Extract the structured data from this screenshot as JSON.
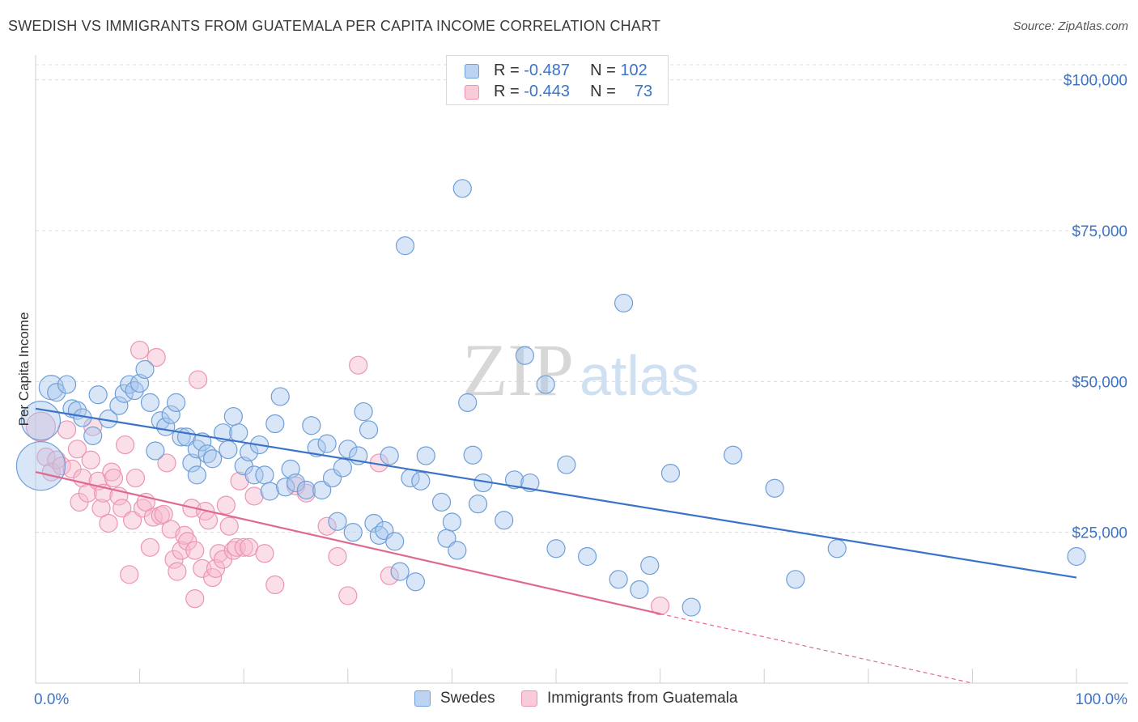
{
  "title": "SWEDISH VS IMMIGRANTS FROM GUATEMALA PER CAPITA INCOME CORRELATION CHART",
  "source": "Source: ZipAtlas.com",
  "watermark": {
    "zip": "ZIP",
    "atlas": "atlas"
  },
  "colors": {
    "blue": "#3a73c9",
    "blue_fill": "#a9c8ee",
    "blue_stroke": "#6f9fd8",
    "pink": "#e0698f",
    "pink_fill": "#f6b9cc",
    "pink_stroke": "#ec95b2",
    "grid": "#dcdcdc",
    "axis_text": "#3a73c9"
  },
  "legend": {
    "rows": [
      {
        "r_label": "R =",
        "r_value": "-0.487",
        "n_label": "N =",
        "n_value": "102"
      },
      {
        "r_label": "R =",
        "r_value": "-0.443",
        "n_label": "N =",
        "n_value": "73"
      }
    ]
  },
  "bottom_legend": {
    "swedes": "Swedes",
    "guatemala": "Immigrants from Guatemala"
  },
  "chart_data": {
    "type": "scatter",
    "title": "SWEDISH VS IMMIGRANTS FROM GUATEMALA PER CAPITA INCOME CORRELATION CHART",
    "ylabel": "Per Capita Income",
    "xlabel": "",
    "xlim": [
      0,
      100
    ],
    "ylim": [
      0,
      102500
    ],
    "x_tick_labels": [
      "0.0%",
      "100.0%"
    ],
    "y_ticks": [
      25000,
      50000,
      75000,
      100000
    ],
    "y_tick_labels": [
      "$25,000",
      "$50,000",
      "$75,000",
      "$100,000"
    ],
    "grid": true,
    "legend_position": "top-center",
    "series": [
      {
        "name": "Swedes",
        "color": "#3a73c9",
        "trend": {
          "x": [
            0,
            100
          ],
          "y": [
            45500,
            17500
          ]
        },
        "points": [
          [
            0.5,
            36000,
            30
          ],
          [
            0.5,
            43500,
            24
          ],
          [
            1.5,
            49000,
            15
          ],
          [
            2,
            48200,
            11
          ],
          [
            3,
            49500,
            11
          ],
          [
            3.5,
            45500,
            11
          ],
          [
            4,
            45200,
            11
          ],
          [
            4.5,
            44000,
            11
          ],
          [
            5.5,
            41000,
            11
          ],
          [
            6,
            47800,
            11
          ],
          [
            7,
            43800,
            11
          ],
          [
            8,
            46000,
            11
          ],
          [
            8.5,
            48000,
            11
          ],
          [
            9,
            49500,
            11
          ],
          [
            9.5,
            48500,
            11
          ],
          [
            10,
            49700,
            11
          ],
          [
            10.5,
            52000,
            11
          ],
          [
            11,
            46500,
            11
          ],
          [
            11.5,
            38500,
            11
          ],
          [
            12,
            43500,
            11
          ],
          [
            12.5,
            42500,
            11
          ],
          [
            13,
            44500,
            11
          ],
          [
            13.5,
            46500,
            11
          ],
          [
            14,
            40800,
            11
          ],
          [
            14.5,
            40800,
            11
          ],
          [
            15,
            36500,
            11
          ],
          [
            15.5,
            34500,
            11
          ],
          [
            15.5,
            38800,
            11
          ],
          [
            16,
            40000,
            11
          ],
          [
            16.5,
            38000,
            11
          ],
          [
            17,
            37200,
            11
          ],
          [
            18,
            41500,
            11
          ],
          [
            18.5,
            38700,
            11
          ],
          [
            19,
            44200,
            11
          ],
          [
            19.5,
            41500,
            11
          ],
          [
            20,
            36000,
            11
          ],
          [
            20.5,
            38300,
            11
          ],
          [
            21,
            34500,
            11
          ],
          [
            21.5,
            39500,
            11
          ],
          [
            22,
            34500,
            11
          ],
          [
            22.5,
            31800,
            11
          ],
          [
            23,
            43000,
            11
          ],
          [
            23.5,
            47500,
            11
          ],
          [
            24,
            32500,
            11
          ],
          [
            24.5,
            35500,
            11
          ],
          [
            25,
            33200,
            11
          ],
          [
            26,
            32000,
            11
          ],
          [
            26.5,
            42700,
            11
          ],
          [
            27,
            39000,
            11
          ],
          [
            27.5,
            32000,
            11
          ],
          [
            28,
            39700,
            11
          ],
          [
            28.5,
            34000,
            11
          ],
          [
            29,
            26800,
            11
          ],
          [
            29.5,
            35700,
            11
          ],
          [
            30,
            38800,
            11
          ],
          [
            30.5,
            25000,
            11
          ],
          [
            31,
            37700,
            11
          ],
          [
            31.5,
            45000,
            11
          ],
          [
            32,
            42000,
            11
          ],
          [
            32.5,
            26500,
            11
          ],
          [
            33,
            24500,
            11
          ],
          [
            33.5,
            25300,
            11
          ],
          [
            34,
            37700,
            11
          ],
          [
            34.5,
            23500,
            11
          ],
          [
            35,
            18500,
            11
          ],
          [
            35.5,
            72500,
            11
          ],
          [
            36,
            34000,
            11
          ],
          [
            36.5,
            16800,
            11
          ],
          [
            37,
            33500,
            11
          ],
          [
            37.5,
            37700,
            11
          ],
          [
            39,
            30000,
            11
          ],
          [
            39.5,
            24000,
            11
          ],
          [
            40,
            26700,
            11
          ],
          [
            40.5,
            22000,
            11
          ],
          [
            41,
            82000,
            11
          ],
          [
            41.5,
            46500,
            11
          ],
          [
            42,
            37800,
            11
          ],
          [
            42.5,
            29700,
            11
          ],
          [
            43,
            33200,
            11
          ],
          [
            45,
            27000,
            11
          ],
          [
            46,
            33700,
            11
          ],
          [
            47,
            54300,
            11
          ],
          [
            47.5,
            33200,
            11
          ],
          [
            49,
            49500,
            11
          ],
          [
            50,
            22300,
            11
          ],
          [
            51,
            36200,
            11
          ],
          [
            53,
            21000,
            11
          ],
          [
            56,
            17200,
            11
          ],
          [
            56.5,
            63000,
            11
          ],
          [
            58,
            15500,
            11
          ],
          [
            59,
            19500,
            11
          ],
          [
            61,
            34800,
            11
          ],
          [
            63,
            12600,
            11
          ],
          [
            67,
            37800,
            11
          ],
          [
            71,
            32300,
            11
          ],
          [
            73,
            17200,
            11
          ],
          [
            77,
            22300,
            11
          ],
          [
            100,
            21000,
            11
          ]
        ]
      },
      {
        "name": "Immigrants from Guatemala",
        "color": "#e0698f",
        "trend": {
          "x": [
            0,
            60
          ],
          "y": [
            35000,
            11500
          ]
        },
        "trend_dashed": {
          "x": [
            60,
            90
          ],
          "y": [
            11500,
            0
          ]
        },
        "points": [
          [
            0.5,
            42500,
            18
          ],
          [
            1,
            37500,
            11
          ],
          [
            1.5,
            35000,
            11
          ],
          [
            2,
            37000,
            11
          ],
          [
            2.5,
            36000,
            11
          ],
          [
            3,
            42000,
            11
          ],
          [
            3.5,
            35500,
            11
          ],
          [
            4,
            38800,
            11
          ],
          [
            4.2,
            30000,
            11
          ],
          [
            4.5,
            34000,
            11
          ],
          [
            5,
            31500,
            11
          ],
          [
            5.3,
            37000,
            11
          ],
          [
            5.5,
            42500,
            11
          ],
          [
            6,
            33500,
            11
          ],
          [
            6.3,
            29000,
            11
          ],
          [
            6.5,
            31500,
            11
          ],
          [
            7,
            26500,
            11
          ],
          [
            7.3,
            35000,
            11
          ],
          [
            7.5,
            34000,
            11
          ],
          [
            8,
            31000,
            11
          ],
          [
            8.3,
            29000,
            11
          ],
          [
            8.6,
            39500,
            11
          ],
          [
            9,
            18000,
            11
          ],
          [
            9.3,
            27000,
            11
          ],
          [
            9.6,
            34000,
            11
          ],
          [
            10,
            55200,
            11
          ],
          [
            10.3,
            29000,
            11
          ],
          [
            10.6,
            30000,
            11
          ],
          [
            11,
            22500,
            11
          ],
          [
            11.3,
            27500,
            11
          ],
          [
            11.6,
            54000,
            11
          ],
          [
            12,
            27800,
            11
          ],
          [
            12.3,
            28000,
            11
          ],
          [
            12.6,
            36500,
            11
          ],
          [
            13,
            25500,
            11
          ],
          [
            13.3,
            20500,
            11
          ],
          [
            13.6,
            18500,
            11
          ],
          [
            14,
            22000,
            11
          ],
          [
            14.3,
            24500,
            11
          ],
          [
            14.6,
            23500,
            11
          ],
          [
            15,
            29000,
            11
          ],
          [
            15.3,
            22000,
            11
          ],
          [
            15.3,
            14000,
            11
          ],
          [
            15.6,
            50300,
            11
          ],
          [
            16,
            19000,
            11
          ],
          [
            16.3,
            28500,
            11
          ],
          [
            16.6,
            27000,
            11
          ],
          [
            17,
            17500,
            11
          ],
          [
            17.3,
            19000,
            11
          ],
          [
            17.6,
            21500,
            11
          ],
          [
            18,
            20500,
            11
          ],
          [
            18.3,
            29500,
            11
          ],
          [
            18.6,
            26000,
            11
          ],
          [
            19,
            22000,
            11
          ],
          [
            19.3,
            22500,
            11
          ],
          [
            19.6,
            33500,
            11
          ],
          [
            20,
            22500,
            11
          ],
          [
            20.5,
            22500,
            11
          ],
          [
            21,
            31000,
            11
          ],
          [
            22,
            21500,
            11
          ],
          [
            23,
            16300,
            11
          ],
          [
            25,
            32700,
            11
          ],
          [
            26,
            31500,
            11
          ],
          [
            28,
            26000,
            11
          ],
          [
            29,
            21000,
            11
          ],
          [
            30,
            14500,
            11
          ],
          [
            31,
            52700,
            11
          ],
          [
            33,
            36500,
            11
          ],
          [
            34,
            17800,
            11
          ],
          [
            60,
            12800,
            11
          ]
        ]
      }
    ]
  }
}
